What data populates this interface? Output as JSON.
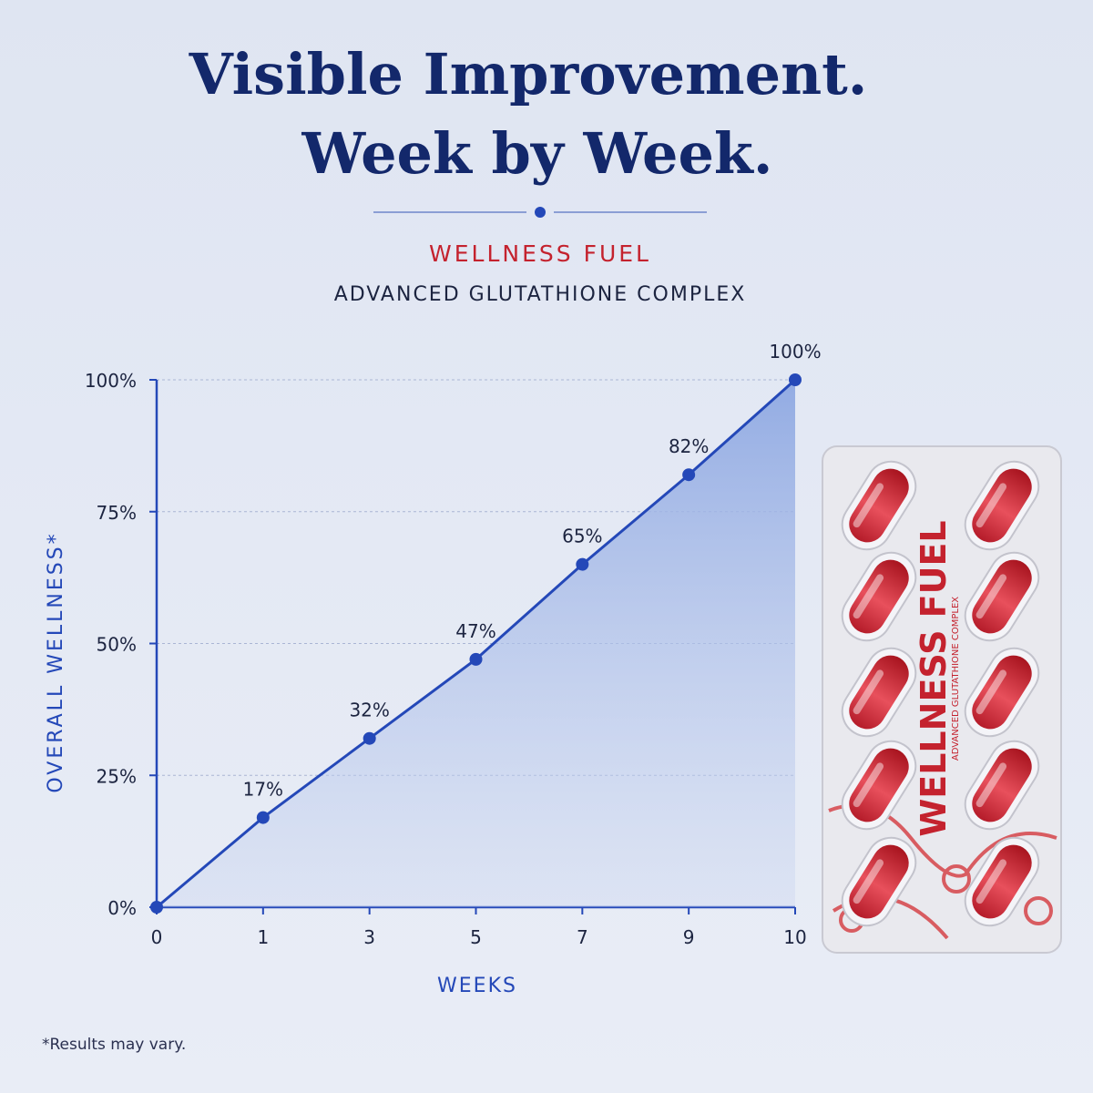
{
  "chart_data": {
    "type": "line",
    "title": [
      "Visible Improvement.",
      "Week by Week."
    ],
    "brand": "WELLNESS FUEL",
    "subtitle": "ADVANCED GLUTATHIONE COMPLEX",
    "xlabel": "WEEKS",
    "ylabel": "OVERALL WELLNESS*",
    "footnote": "*Results may vary.",
    "categories": [
      "0",
      "1",
      "3",
      "5",
      "7",
      "9",
      "10"
    ],
    "series": [
      {
        "name": "Overall wellness",
        "color": "#2448b8",
        "values": [
          0,
          17,
          32,
          47,
          65,
          82,
          100
        ],
        "value_labels": [
          null,
          "17%",
          "32%",
          "47%",
          "65%",
          "82%",
          "100%"
        ]
      }
    ],
    "ylim": [
      0,
      100
    ],
    "yticks": [
      {
        "value": 0,
        "label": "0%"
      },
      {
        "value": 25,
        "label": "25%"
      },
      {
        "value": 50,
        "label": "50%"
      },
      {
        "value": 75,
        "label": "75%"
      },
      {
        "value": 100,
        "label": "100%"
      }
    ],
    "grid": true,
    "area": true
  }
}
